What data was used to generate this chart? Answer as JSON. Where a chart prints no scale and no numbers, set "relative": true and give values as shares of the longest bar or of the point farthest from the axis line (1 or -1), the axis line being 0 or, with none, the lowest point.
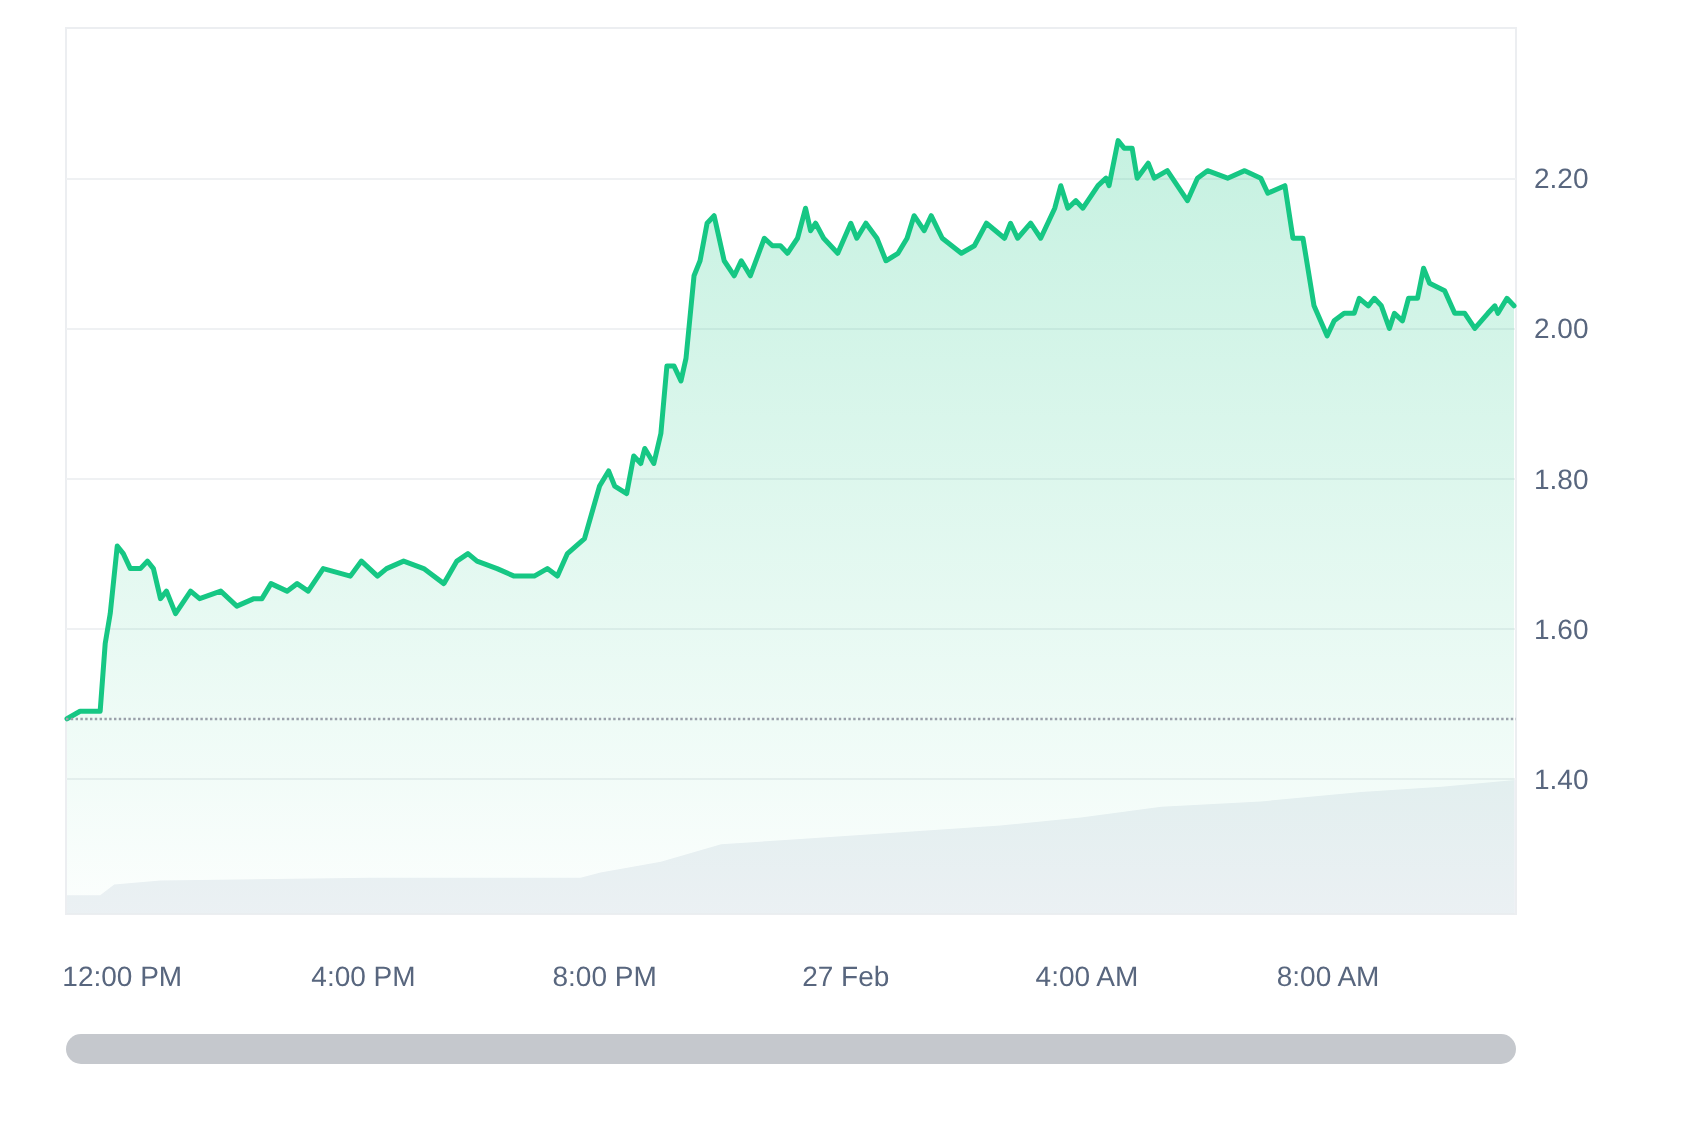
{
  "chart_data": [
    {
      "type": "area",
      "x": [
        "--02-26T11:05",
        "--02-26T11:18",
        "--02-26T11:28",
        "--02-26T11:38",
        "--02-26T11:43",
        "--02-26T11:48",
        "--02-26T11:55",
        "--02-26T12:01",
        "--02-26T12:08",
        "--02-26T12:18",
        "--02-26T12:25",
        "--02-26T12:31",
        "--02-26T12:38",
        "--02-26T12:44",
        "--02-26T12:53",
        "--02-26T13:08",
        "--02-26T13:17",
        "--02-26T13:38",
        "--02-26T13:54",
        "--02-26T14:11",
        "--02-26T14:19",
        "--02-26T14:28",
        "--02-26T14:44",
        "--02-26T14:54",
        "--02-26T15:05",
        "--02-26T15:20",
        "--02-26T15:47",
        "--02-26T15:58",
        "--02-26T16:14",
        "--02-26T16:23",
        "--02-26T16:40",
        "--02-26T17:00",
        "--02-26T17:20",
        "--02-26T17:33",
        "--02-26T17:44",
        "--02-26T17:53",
        "--02-26T18:13",
        "--02-26T18:30",
        "--02-26T18:50",
        "--02-26T19:03",
        "--02-26T19:13",
        "--02-26T19:23",
        "--02-26T19:40",
        "--02-26T19:55",
        "--02-26T20:04",
        "--02-26T20:10",
        "--02-26T20:22",
        "--02-26T20:29",
        "--02-26T20:36",
        "--02-26T20:40",
        "--02-26T20:49",
        "--02-26T20:56",
        "--02-26T21:02",
        "--02-26T21:09",
        "--02-26T21:16",
        "--02-26T21:21",
        "--02-26T21:29",
        "--02-26T21:35",
        "--02-26T21:42",
        "--02-26T21:49",
        "--02-26T21:59",
        "--02-26T22:09",
        "--02-26T22:16",
        "--02-26T22:25",
        "--02-26T22:39",
        "--02-26T22:47",
        "--02-26T22:55",
        "--02-26T23:02",
        "--02-26T23:12",
        "--02-26T23:20",
        "--02-26T23:25",
        "--02-26T23:30",
        "--02-26T23:38",
        "--02-26T23:52",
        "--02-27T00:05",
        "--02-27T00:11",
        "--02-27T00:20",
        "--02-27T00:31",
        "--02-27T00:40",
        "--02-27T00:52",
        "--02-27T01:01",
        "--02-27T01:08",
        "--02-27T01:18",
        "--02-27T01:25",
        "--02-27T01:36",
        "--02-27T01:55",
        "--02-27T02:08",
        "--02-27T02:20",
        "--02-27T02:38",
        "--02-27T02:44",
        "--02-27T02:51",
        "--02-27T03:04",
        "--02-27T03:14",
        "--02-27T03:28",
        "--02-27T03:34",
        "--02-27T03:41",
        "--02-27T03:49",
        "--02-27T03:56",
        "--02-27T04:11",
        "--02-27T04:19",
        "--02-27T04:22",
        "--02-27T04:31",
        "--02-27T04:37",
        "--02-27T04:45",
        "--02-27T04:50",
        "--02-27T05:01",
        "--02-27T05:07",
        "--02-27T05:20",
        "--02-27T05:30",
        "--02-27T05:40",
        "--02-27T05:50",
        "--02-27T06:00",
        "--02-27T06:20",
        "--02-27T06:37",
        "--02-27T06:53",
        "--02-27T07:00",
        "--02-27T07:17",
        "--02-27T07:25",
        "--02-27T07:35",
        "--02-27T07:46",
        "--02-27T07:59",
        "--02-27T08:06",
        "--02-27T08:16",
        "--02-27T08:26",
        "--02-27T08:31",
        "--02-27T08:40",
        "--02-27T08:46",
        "--02-27T08:53",
        "--02-27T09:01",
        "--02-27T09:06",
        "--02-27T09:14",
        "--02-27T09:20",
        "--02-27T09:29",
        "--02-27T09:35",
        "--02-27T09:41",
        "--02-27T09:56",
        "--02-27T10:06",
        "--02-27T10:16",
        "--02-27T10:26",
        "--02-27T10:39",
        "--02-27T10:46",
        "--02-27T10:49",
        "--02-27T10:58",
        "--02-27T11:05"
      ],
      "series": [
        {
          "color": "#16c784",
          "values": [
            1.48,
            1.49,
            1.49,
            1.49,
            1.58,
            1.62,
            1.71,
            1.7,
            1.68,
            1.68,
            1.69,
            1.68,
            1.64,
            1.65,
            1.62,
            1.65,
            1.64,
            1.65,
            1.63,
            1.64,
            1.64,
            1.66,
            1.65,
            1.66,
            1.65,
            1.68,
            1.67,
            1.69,
            1.67,
            1.68,
            1.69,
            1.68,
            1.66,
            1.69,
            1.7,
            1.69,
            1.68,
            1.67,
            1.67,
            1.68,
            1.67,
            1.7,
            1.72,
            1.79,
            1.81,
            1.79,
            1.78,
            1.83,
            1.82,
            1.84,
            1.82,
            1.86,
            1.95,
            1.95,
            1.93,
            1.96,
            2.07,
            2.09,
            2.14,
            2.15,
            2.09,
            2.07,
            2.09,
            2.07,
            2.12,
            2.11,
            2.11,
            2.1,
            2.12,
            2.16,
            2.13,
            2.14,
            2.12,
            2.1,
            2.14,
            2.12,
            2.14,
            2.12,
            2.09,
            2.1,
            2.12,
            2.15,
            2.13,
            2.15,
            2.12,
            2.1,
            2.11,
            2.14,
            2.12,
            2.14,
            2.12,
            2.14,
            2.12,
            2.16,
            2.19,
            2.16,
            2.17,
            2.16,
            2.19,
            2.2,
            2.19,
            2.25,
            2.24,
            2.24,
            2.2,
            2.22,
            2.2,
            2.21,
            2.19,
            2.17,
            2.2,
            2.21,
            2.2,
            2.21,
            2.2,
            2.18,
            2.19,
            2.12,
            2.12,
            2.03,
            1.99,
            2.01,
            2.02,
            2.02,
            2.04,
            2.03,
            2.04,
            2.03,
            2.0,
            2.02,
            2.01,
            2.04,
            2.04,
            2.08,
            2.06,
            2.05,
            2.02,
            2.02,
            2.0,
            2.02,
            2.03,
            2.02,
            2.04,
            2.03
          ]
        }
      ],
      "xlim": [
        "--02-26T11:04",
        "--02-27T11:07"
      ],
      "xticks": [
        {
          "value": "--02-26T12:00",
          "label": "12:00 PM"
        },
        {
          "value": "--02-26T16:00",
          "label": "4:00 PM"
        },
        {
          "value": "--02-26T20:00",
          "label": "8:00 PM"
        },
        {
          "value": "--02-27T00:00",
          "label": "27 Feb"
        },
        {
          "value": "--02-27T04:00",
          "label": "4:00 AM"
        },
        {
          "value": "--02-27T08:00",
          "label": "8:00 AM"
        }
      ],
      "ylim": [
        1.22,
        2.4
      ],
      "yticks": [
        {
          "value": 1.4,
          "label": "1.40"
        },
        {
          "value": 1.6,
          "label": "1.60"
        },
        {
          "value": 1.8,
          "label": "1.80"
        },
        {
          "value": 2.0,
          "label": "2.00"
        },
        {
          "value": 2.2,
          "label": "2.20"
        }
      ],
      "grid": "y",
      "marker": "none",
      "line_style": "solid",
      "ref_lines": [
        {
          "axis": "y",
          "value": 1.48,
          "color": "#9aa0aa",
          "line_style": "dotted"
        }
      ]
    },
    {
      "type": "area",
      "relative": true,
      "tick_labels": false,
      "x": [
        "--02-26T11:04",
        "--02-26T11:38",
        "--02-26T11:52",
        "--02-26T12:38",
        "--02-26T16:07",
        "--02-26T19:36",
        "--02-26T19:56",
        "--02-26T20:56",
        "--02-26T21:56",
        "--02-26T23:15",
        "--02-27T00:55",
        "--02-27T02:34",
        "--02-27T03:54",
        "--02-27T05:14",
        "--02-27T06:53",
        "--02-27T08:33",
        "--02-27T09:53",
        "--02-27T11:06"
      ],
      "series": [
        {
          "color": "#eef1f5",
          "values": [
            0.14,
            0.14,
            0.22,
            0.25,
            0.27,
            0.27,
            0.31,
            0.39,
            0.52,
            0.56,
            0.61,
            0.66,
            0.72,
            0.8,
            0.84,
            0.91,
            0.95,
            1
          ]
        }
      ],
      "xlim": [
        "--02-26T11:04",
        "--02-27T11:07"
      ],
      "marker": "none"
    }
  ]
}
